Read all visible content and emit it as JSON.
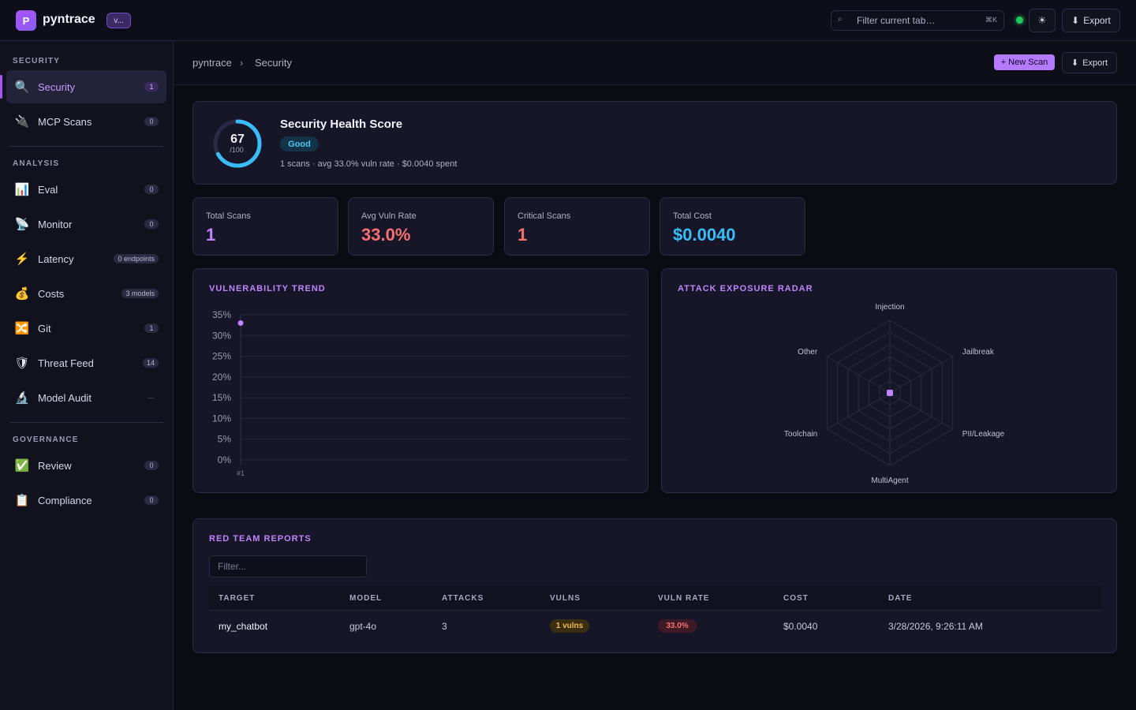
{
  "app": {
    "logo_letter": "P",
    "name": "pyntrace",
    "version": "v...",
    "search_placeholder": "Filter current tab…",
    "search_shortcut": "⌘K",
    "theme_icon": "☀",
    "export_label": "Export",
    "status_color": "#22c55e"
  },
  "sidebar": {
    "sections": [
      {
        "title": "SECURITY"
      },
      {
        "title": "ANALYSIS"
      },
      {
        "title": "GOVERNANCE"
      }
    ],
    "items": [
      {
        "label": "Security",
        "icon": "🔍",
        "count": "1"
      },
      {
        "label": "MCP Scans",
        "icon": "🔌",
        "count": "0"
      },
      {
        "label": "Eval",
        "icon": "📊",
        "count": "0"
      },
      {
        "label": "Monitor",
        "icon": "📡",
        "count": "0"
      },
      {
        "label": "Latency",
        "icon": "⚡",
        "count": "0 endpoints"
      },
      {
        "label": "Costs",
        "icon": "💰",
        "count": "3 models"
      },
      {
        "label": "Git",
        "icon": "🔀",
        "count": "1"
      },
      {
        "label": "Threat Feed",
        "icon": "🛡",
        "count": "14"
      },
      {
        "label": "Model Audit",
        "icon": "🔬",
        "count": "—"
      },
      {
        "label": "Review",
        "icon": "✅",
        "count": "0"
      },
      {
        "label": "Compliance",
        "icon": "📋",
        "count": "0"
      }
    ]
  },
  "breadcrumb": {
    "root": "pyntrace",
    "separator": "›",
    "current": "Security",
    "new_scan_label": "+ New Scan",
    "export_label": "Export"
  },
  "health": {
    "title": "Security Health Score",
    "score": "67",
    "score_max": "/100",
    "score_value": 67,
    "status": "Good",
    "summary": "1 scans · avg 33.0% vuln rate · $0.0040 spent",
    "accent": "#38bdf8"
  },
  "stats": [
    {
      "label": "Total Scans",
      "value": "1",
      "color": "#c084fc"
    },
    {
      "label": "Avg Vuln Rate",
      "value": "33.0%",
      "color": "#f87171"
    },
    {
      "label": "Critical Scans",
      "value": "1",
      "color": "#f87171"
    },
    {
      "label": "Total Cost",
      "value": "$0.0040",
      "color": "#38bdf8"
    }
  ],
  "vuln_trend": {
    "title": "VULNERABILITY TREND",
    "chart_data": {
      "type": "scatter",
      "categories": [
        "#1"
      ],
      "values": [
        33
      ],
      "ylim": [
        0,
        35
      ],
      "yticks": [
        "0%",
        "5%",
        "10%",
        "15%",
        "20%",
        "25%",
        "30%",
        "35%"
      ],
      "grid": true
    }
  },
  "radar": {
    "title": "ATTACK EXPOSURE RADAR",
    "chart_data": {
      "type": "radar",
      "categories": [
        "Injection",
        "Jailbreak",
        "PII/Leakage",
        "MultiAgent",
        "Toolchain",
        "Other"
      ],
      "values": [
        0,
        0,
        0,
        0,
        0,
        0
      ]
    }
  },
  "reports": {
    "title": "RED TEAM REPORTS",
    "filter_placeholder": "Filter...",
    "columns": [
      "TARGET",
      "MODEL",
      "ATTACKS",
      "VULNS",
      "VULN RATE",
      "COST",
      "DATE"
    ],
    "rows": [
      {
        "target": "my_chatbot",
        "model": "gpt-4o",
        "attacks": "3",
        "vulns": "1 vulns",
        "vuln_rate": "33.0%",
        "cost": "$0.0040",
        "date": "3/28/2026, 9:26:11 AM"
      }
    ]
  }
}
